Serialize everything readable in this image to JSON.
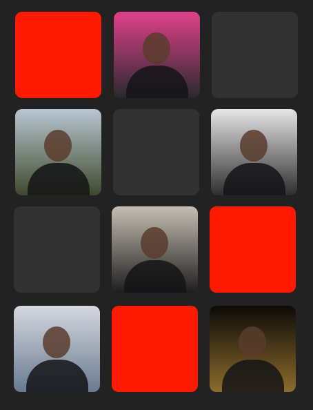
{
  "tiles": [
    {
      "color": "#ff1a00"
    },
    {
      "colors": [
        "#e0408a",
        "#2a2a2e"
      ]
    },
    {
      "color": "#323232"
    },
    {
      "colors": [
        "#b9c6d2",
        "#3e4a2c"
      ]
    },
    {
      "color": "#323232"
    },
    {
      "colors": [
        "#e6e6e6",
        "#2e2e30"
      ]
    },
    {
      "color": "#323232"
    },
    {
      "colors": [
        "#c6beb4",
        "#1e1e1e"
      ]
    },
    {
      "color": "#ff1a00"
    },
    {
      "colors": [
        "#d6d8de",
        "#687a92"
      ]
    },
    {
      "color": "#ff1a00"
    },
    {
      "colors": [
        "#0c0a08",
        "#8c6c2c"
      ]
    }
  ]
}
